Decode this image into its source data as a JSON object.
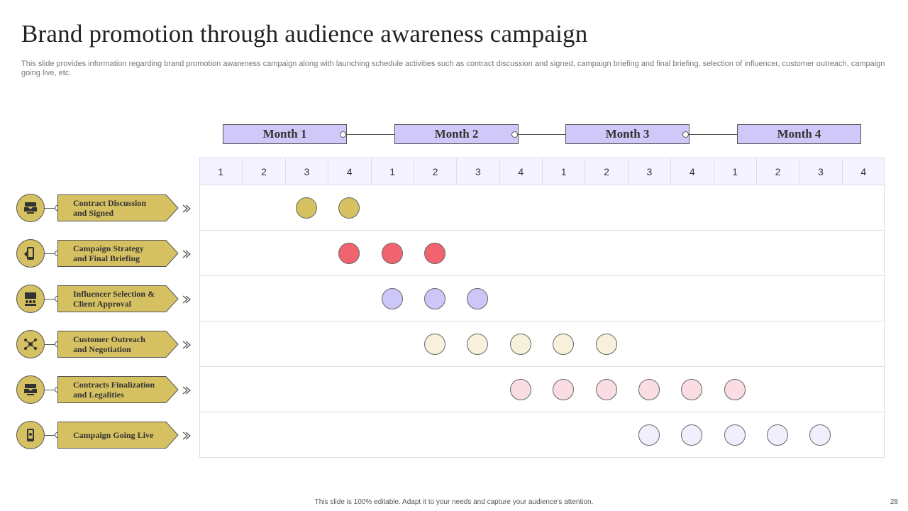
{
  "slide": {
    "title": "Brand promotion through audience awareness campaign",
    "subtitle": "This slide provides information regarding brand promotion awareness campaign along with launching schedule activities such as contract discussion and signed, campaign briefing and final briefing, selection of influencer, customer outreach, campaign going live, etc.",
    "footer": "This slide is 100% editable. Adapt it to your needs and capture your audience's attention.",
    "page_number": "28"
  },
  "months": [
    "Month 1",
    "Month 2",
    "Month 3",
    "Month 4"
  ],
  "weeks": [
    "1",
    "2",
    "3",
    "4",
    "1",
    "2",
    "3",
    "4",
    "1",
    "2",
    "3",
    "4",
    "1",
    "2",
    "3",
    "4"
  ],
  "activities": [
    {
      "label_line1": "Contract Discussion",
      "label_line2": "and Signed",
      "icon": "handshake-icon",
      "dot_color": "#d6c162",
      "weeks": [
        3,
        4
      ]
    },
    {
      "label_line1": "Campaign Strategy",
      "label_line2": "and Final Briefing",
      "icon": "mobile-strategy-icon",
      "dot_color": "#f1646f",
      "weeks": [
        4,
        5,
        6
      ]
    },
    {
      "label_line1": "Influencer Selection &",
      "label_line2": "Client Approval",
      "icon": "team-presentation-icon",
      "dot_color": "#cdc6f8",
      "weeks": [
        5,
        6,
        7
      ]
    },
    {
      "label_line1": "Customer Outreach",
      "label_line2": "and Negotiation",
      "icon": "network-people-icon",
      "dot_color": "#f7f1dc",
      "weeks": [
        6,
        7,
        8,
        9,
        10
      ]
    },
    {
      "label_line1": "Contracts Finalization",
      "label_line2": "and Legalities",
      "icon": "handshake-icon",
      "dot_color": "#f9dde3",
      "weeks": [
        8,
        9,
        10,
        11,
        12,
        13
      ]
    },
    {
      "label_line1": "Campaign Going Live",
      "label_line2": "",
      "icon": "mobile-live-icon",
      "dot_color": "#f1effe",
      "weeks": [
        11,
        12,
        13,
        14,
        15
      ]
    }
  ]
}
